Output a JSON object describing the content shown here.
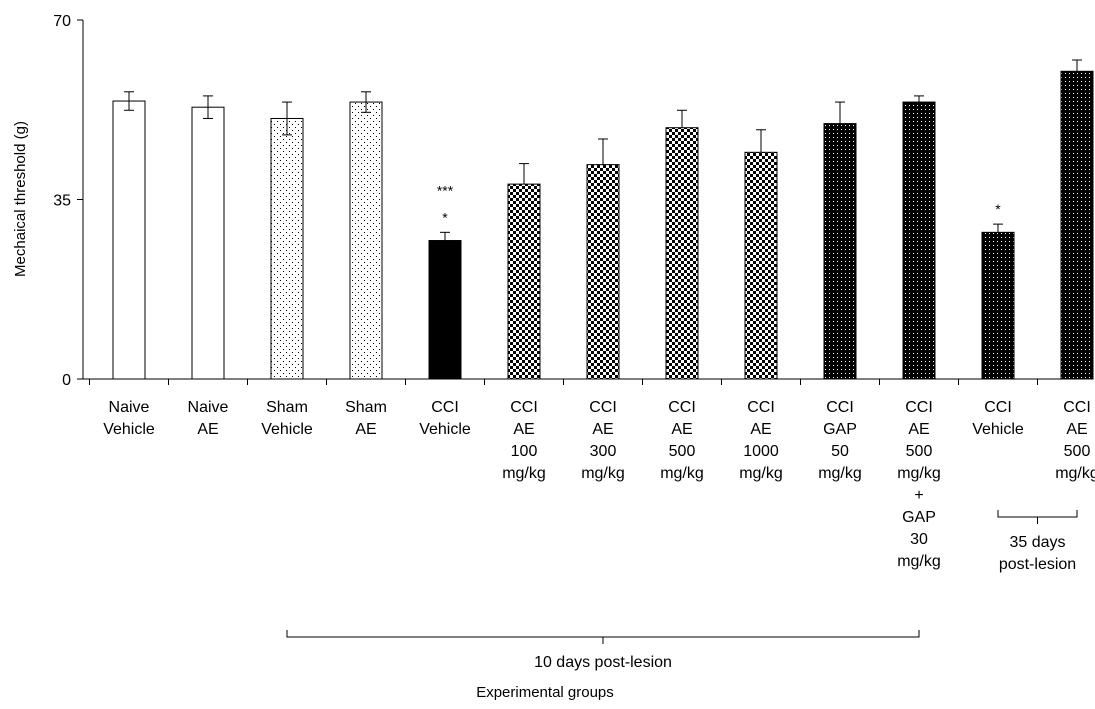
{
  "chart_data": {
    "type": "bar",
    "title": "",
    "ylabel": "Mechaical threshold  (g)",
    "xlabel": "Experimental groups",
    "ylim": [
      0,
      70
    ],
    "yticks": [
      0,
      35,
      70
    ],
    "grid": false,
    "legend": "none",
    "categories": [
      [
        "Naive",
        "Vehicle"
      ],
      [
        "Naive",
        "AE"
      ],
      [
        "Sham",
        "Vehicle"
      ],
      [
        "Sham",
        "AE"
      ],
      [
        "CCI",
        "Vehicle"
      ],
      [
        "CCI",
        "AE",
        "100",
        "mg/kg"
      ],
      [
        "CCI",
        "AE",
        "300",
        "mg/kg"
      ],
      [
        "CCI",
        "AE",
        "500",
        "mg/kg"
      ],
      [
        "CCI",
        "AE",
        "1000",
        "mg/kg"
      ],
      [
        "CCI",
        "GAP",
        "50",
        "mg/kg"
      ],
      [
        "CCI",
        "AE",
        "500",
        "mg/kg",
        "+",
        "GAP",
        "30",
        "mg/kg"
      ],
      [
        "CCI",
        "Vehicle"
      ],
      [
        "CCI",
        "AE",
        "500",
        "mg/kg"
      ]
    ],
    "values": [
      54.2,
      53.0,
      50.8,
      54.0,
      27.0,
      38.0,
      41.8,
      49.0,
      44.2,
      49.8,
      54.0,
      28.6,
      60.0
    ],
    "errors": [
      1.8,
      2.2,
      3.2,
      2.0,
      1.6,
      4.0,
      5.0,
      3.4,
      4.4,
      4.2,
      1.2,
      1.6,
      2.2
    ],
    "fills": [
      "white",
      "white",
      "dots",
      "dots",
      "black",
      "checker",
      "checker",
      "checker",
      "checker",
      "dense-dots",
      "dense-dots",
      "dense-dots",
      "dense-dots"
    ],
    "significance": [
      {
        "index": 4,
        "lines": [
          "***",
          "*"
        ]
      },
      {
        "index": 11,
        "lines": [
          "*"
        ]
      }
    ],
    "group_brackets": [
      {
        "from": 2,
        "to": 10,
        "label": [
          "10 days post-lesion"
        ]
      },
      {
        "from": 11,
        "to": 12,
        "label": [
          "35 days",
          "post-lesion"
        ]
      }
    ]
  },
  "colors": {
    "axis": "#000000",
    "bar_outline": "#000000",
    "bar_solid": "#000000",
    "background": "#ffffff"
  }
}
